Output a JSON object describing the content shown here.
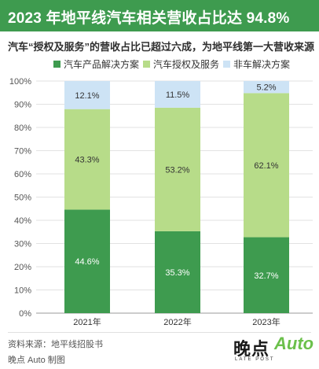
{
  "title": "2023 年地平线汽车相关营收占比达 94.8%",
  "subtitle": "汽车“授权及服务”的营收占比已超过六成，为地平线第一大营收来源",
  "colors": {
    "header": "#3e9b4f",
    "product": "#3e9b4f",
    "license": "#b7dc89",
    "non_auto": "#cde3f5"
  },
  "legend": [
    {
      "label": "汽车产品解决方案",
      "color": "#3e9b4f"
    },
    {
      "label": "汽车授权及服务",
      "color": "#b7dc89"
    },
    {
      "label": "非车解决方案",
      "color": "#cde3f5"
    }
  ],
  "chart_data": {
    "type": "bar",
    "stacked": true,
    "categories": [
      "2021年",
      "2022年",
      "2023年"
    ],
    "series": [
      {
        "name": "汽车产品解决方案",
        "values": [
          44.6,
          35.3,
          32.7
        ],
        "labels": [
          "44.6%",
          "35.3%",
          "32.7%"
        ],
        "color": "#3e9b4f"
      },
      {
        "name": "汽车授权及服务",
        "values": [
          43.3,
          53.2,
          62.1
        ],
        "labels": [
          "43.3%",
          "53.2%",
          "62.1%"
        ],
        "color": "#b7dc89"
      },
      {
        "name": "非车解决方案",
        "values": [
          12.1,
          11.5,
          5.2
        ],
        "labels": [
          "12.1%",
          "11.5%",
          "5.2%"
        ],
        "color": "#cde3f5"
      }
    ],
    "yticks": [
      "0%",
      "10%",
      "20%",
      "30%",
      "40%",
      "50%",
      "60%",
      "70%",
      "80%",
      "90%",
      "100%"
    ],
    "ylim": [
      0,
      100
    ],
    "grid": true,
    "legend_position": "top"
  },
  "source": "资料来源：地平线招股书",
  "credit": "晚点 Auto 制图",
  "logo": {
    "main": "晚点",
    "sub": "LATE POST",
    "auto": "Auto"
  }
}
